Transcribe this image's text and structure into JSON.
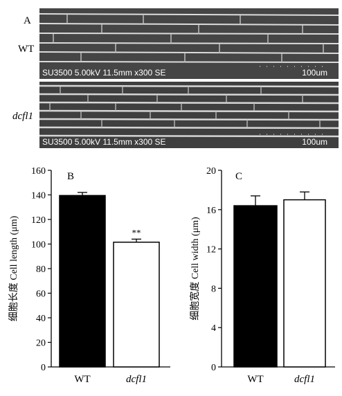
{
  "panels": {
    "a_label": "A",
    "b_label": "B",
    "c_label": "C",
    "wt_label": "WT",
    "mutant_label": "dcfl1"
  },
  "sem": {
    "info": "SU3500 5.00kV 11.5mm x300 SE",
    "scale_label": "100um"
  },
  "chart_data": [
    {
      "type": "bar",
      "panel": "B",
      "categories": [
        "WT",
        "dcfl1"
      ],
      "values": [
        139.5,
        101.5
      ],
      "errors": [
        2.5,
        2.5
      ],
      "bar_colors": [
        "#000000",
        "#ffffff"
      ],
      "ylabel": "细胞长度 Cell length (μm)",
      "ylim": [
        0,
        160
      ],
      "yticks": [
        0,
        20,
        40,
        60,
        80,
        100,
        120,
        140,
        160
      ],
      "annotation": {
        "category": "dcfl1",
        "text": "**"
      }
    },
    {
      "type": "bar",
      "panel": "C",
      "categories": [
        "WT",
        "dcfl1"
      ],
      "values": [
        16.4,
        17.0
      ],
      "errors": [
        1.0,
        0.8
      ],
      "bar_colors": [
        "#000000",
        "#ffffff"
      ],
      "ylabel": "细胞宽度 Cell width (μm)",
      "ylim": [
        0,
        20
      ],
      "yticks": [
        0,
        4,
        8,
        12,
        16,
        20
      ]
    }
  ]
}
